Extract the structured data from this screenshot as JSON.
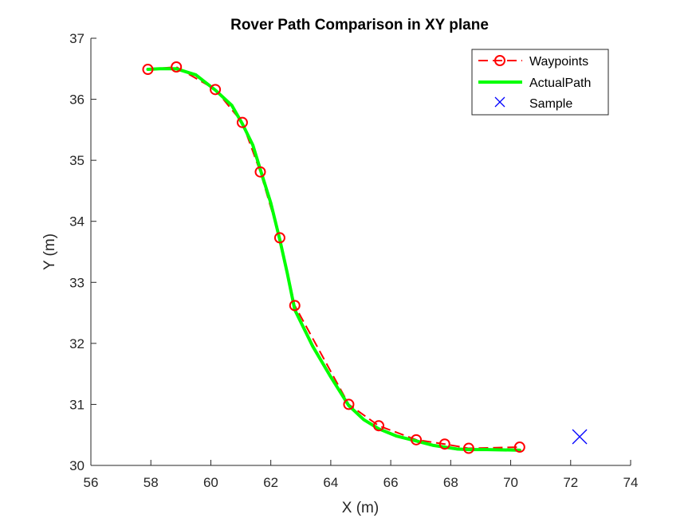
{
  "chart_data": {
    "type": "line",
    "title": "Rover Path Comparison in XY plane",
    "xlabel": "X (m)",
    "ylabel": "Y (m)",
    "xlim": [
      56,
      74
    ],
    "ylim": [
      30,
      37
    ],
    "xticks": [
      "56",
      "58",
      "60",
      "62",
      "64",
      "66",
      "68",
      "70",
      "72",
      "74"
    ],
    "yticks": [
      "30",
      "31",
      "32",
      "33",
      "34",
      "35",
      "36",
      "37"
    ],
    "grid": false,
    "legend_position": "top-right",
    "series": [
      {
        "name": "Waypoints",
        "style": "dashed-circle-markers",
        "color": "#ff0000",
        "x": [
          57.9,
          58.85,
          60.15,
          61.05,
          61.65,
          62.3,
          62.8,
          64.6,
          65.6,
          66.85,
          67.8,
          68.6,
          70.3
        ],
        "y": [
          36.49,
          36.53,
          36.16,
          35.62,
          34.81,
          33.73,
          32.62,
          31.0,
          30.65,
          30.42,
          30.35,
          30.28,
          30.3
        ]
      },
      {
        "name": "ActualPath",
        "style": "solid-thick",
        "color": "#00ff00",
        "x": [
          57.9,
          58.3,
          58.85,
          59.5,
          60.15,
          60.7,
          61.05,
          61.4,
          61.65,
          62.0,
          62.3,
          62.55,
          62.8,
          63.4,
          64.0,
          64.6,
          65.1,
          65.6,
          66.2,
          66.85,
          67.4,
          67.8,
          68.2,
          68.6,
          69.2,
          70.3
        ],
        "y": [
          36.49,
          36.5,
          36.5,
          36.4,
          36.15,
          35.9,
          35.6,
          35.25,
          34.85,
          34.3,
          33.7,
          33.15,
          32.55,
          31.95,
          31.45,
          30.98,
          30.75,
          30.6,
          30.48,
          30.4,
          30.33,
          30.3,
          30.27,
          30.26,
          30.26,
          30.25
        ]
      },
      {
        "name": "Sample",
        "style": "x-marker",
        "color": "#0000ff",
        "x": [
          72.3
        ],
        "y": [
          30.47
        ]
      }
    ]
  }
}
